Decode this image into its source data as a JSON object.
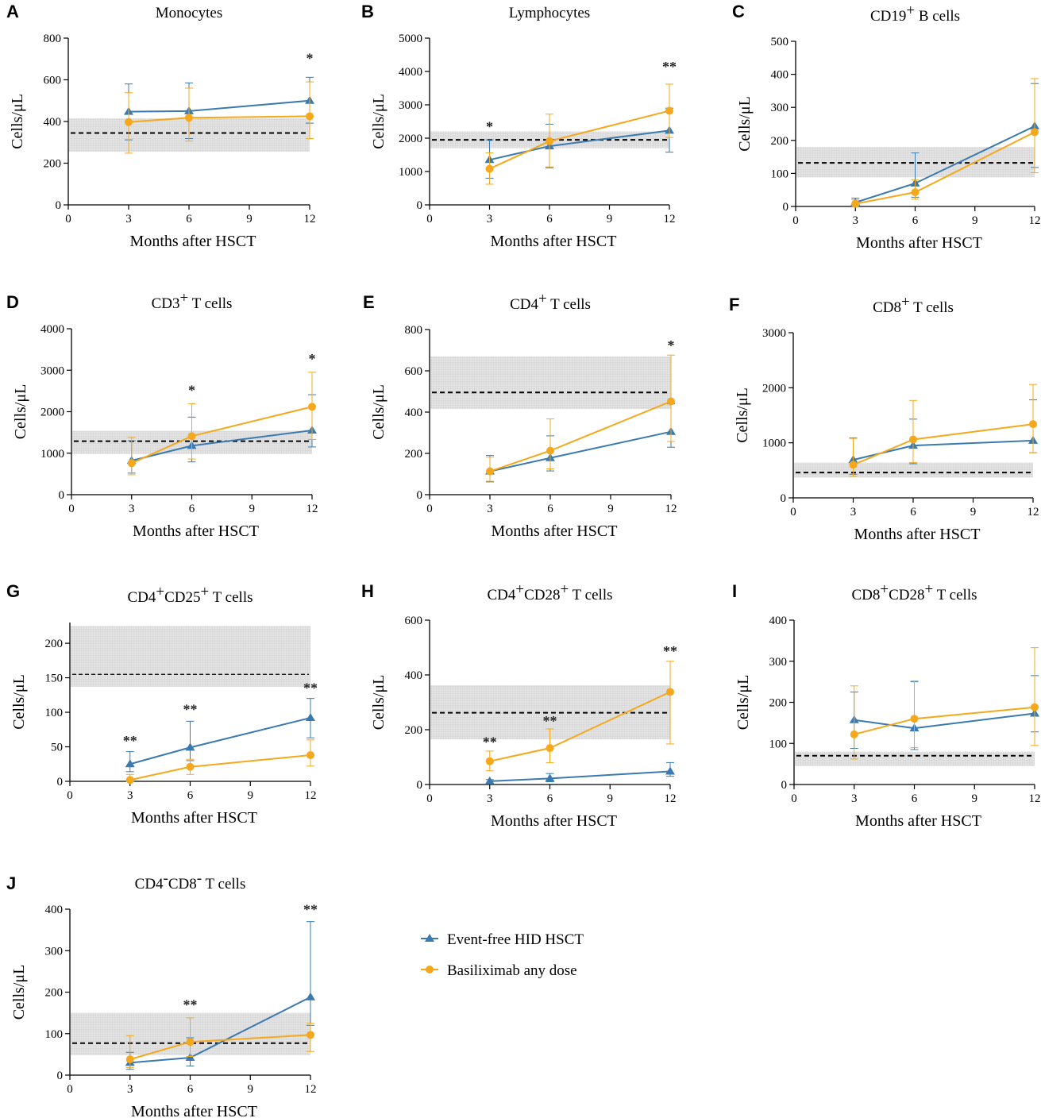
{
  "colors": {
    "series_a": "#3a7ab0",
    "series_b": "#f5a81c",
    "reference_band": "#e2e2e2",
    "reference_line": "#000000",
    "axis": "#000000"
  },
  "legend": [
    {
      "name": "Event-free HID HSCT",
      "marker": "triangle",
      "color": "#3a7ab0"
    },
    {
      "name": "Basiliximab any dose",
      "marker": "circle",
      "color": "#f5a81c"
    }
  ],
  "chart_data": [
    {
      "panel": "A",
      "type": "line",
      "title": "Monocytes",
      "title_sup": "",
      "title_suffix": "",
      "xlabel": "Months after HSCT",
      "ylabel": "Cells/μL",
      "x": [
        3,
        6,
        12
      ],
      "xlim": [
        0,
        12
      ],
      "xticks": [
        0,
        3,
        6,
        9,
        12
      ],
      "ylim": [
        0,
        800
      ],
      "yticks": [
        0,
        200,
        400,
        600,
        800
      ],
      "reference": {
        "median": 345,
        "band": [
          255,
          415
        ]
      },
      "series": [
        {
          "name": "Event-free HID HSCT",
          "values": [
            447,
            450,
            500
          ],
          "err_upper": [
            580,
            585,
            612
          ],
          "err_lower": [
            312,
            318,
            392
          ]
        },
        {
          "name": "Basiliximab any dose",
          "values": [
            397,
            418,
            425
          ],
          "err_upper": [
            538,
            560,
            590
          ],
          "err_lower": [
            248,
            306,
            318
          ]
        }
      ],
      "significance": [
        {
          "x": 12,
          "label": "*",
          "y": 680
        }
      ]
    },
    {
      "panel": "B",
      "type": "line",
      "title": "Lymphocytes",
      "title_sup": "",
      "title_suffix": "",
      "xlabel": "Months after HSCT",
      "ylabel": "Cells/μL",
      "x": [
        3,
        6,
        12
      ],
      "xlim": [
        0,
        12
      ],
      "xticks": [
        0,
        3,
        6,
        9,
        12
      ],
      "ylim": [
        0,
        5000
      ],
      "yticks": [
        0,
        1000,
        2000,
        3000,
        4000,
        5000
      ],
      "reference": {
        "median": 1950,
        "band": [
          1700,
          2200
        ]
      },
      "series": [
        {
          "name": "Event-free HID HSCT",
          "values": [
            1350,
            1760,
            2230
          ],
          "err_upper": [
            1950,
            2420,
            2900
          ],
          "err_lower": [
            800,
            1110,
            1580
          ]
        },
        {
          "name": "Basiliximab any dose",
          "values": [
            1080,
            1910,
            2820
          ],
          "err_upper": [
            1560,
            2720,
            3620
          ],
          "err_lower": [
            620,
            1140,
            2020
          ]
        }
      ],
      "significance": [
        {
          "x": 3,
          "label": "*",
          "y": 2200
        },
        {
          "x": 12,
          "label": "**",
          "y": 4000
        }
      ]
    },
    {
      "panel": "C",
      "type": "line",
      "title": "CD19",
      "title_sup": "+",
      "title_suffix": " B cells",
      "xlabel": "Months after HSCT",
      "ylabel": "Cells/μL",
      "x": [
        3,
        6,
        12
      ],
      "xlim": [
        0,
        12
      ],
      "xticks": [
        0,
        3,
        6,
        9,
        12
      ],
      "ylim": [
        0,
        500
      ],
      "yticks": [
        0,
        100,
        200,
        300,
        400,
        500
      ],
      "reference": {
        "median": 132,
        "band": [
          88,
          180
        ]
      },
      "series": [
        {
          "name": "Event-free HID HSCT",
          "values": [
            12,
            70,
            243
          ],
          "err_upper": [
            25,
            162,
            372
          ],
          "err_lower": [
            2,
            28,
            118
          ]
        },
        {
          "name": "Basiliximab any dose",
          "values": [
            8,
            43,
            225
          ],
          "err_upper": [
            20,
            80,
            387
          ],
          "err_lower": [
            1,
            22,
            102
          ]
        }
      ],
      "significance": []
    },
    {
      "panel": "D",
      "type": "line",
      "title": "CD3",
      "title_sup": "+",
      "title_suffix": " T cells",
      "xlabel": "Months after HSCT",
      "ylabel": "Cells/μL",
      "x": [
        3,
        6,
        12
      ],
      "xlim": [
        0,
        12
      ],
      "xticks": [
        0,
        3,
        6,
        9,
        12
      ],
      "ylim": [
        0,
        4000
      ],
      "yticks": [
        0,
        1000,
        2000,
        3000,
        4000
      ],
      "reference": {
        "median": 1290,
        "band": [
          980,
          1540
        ]
      },
      "series": [
        {
          "name": "Event-free HID HSCT",
          "values": [
            820,
            1180,
            1550
          ],
          "err_upper": [
            1300,
            1870,
            2410
          ],
          "err_lower": [
            520,
            790,
            1150
          ]
        },
        {
          "name": "Basiliximab any dose",
          "values": [
            760,
            1410,
            2120
          ],
          "err_upper": [
            1380,
            2190,
            2950
          ],
          "err_lower": [
            480,
            860,
            1330
          ]
        }
      ],
      "significance": [
        {
          "x": 6,
          "label": "*",
          "y": 2400
        },
        {
          "x": 12,
          "label": "*",
          "y": 3160
        }
      ]
    },
    {
      "panel": "E",
      "type": "line",
      "title": "CD4",
      "title_sup": "+",
      "title_suffix": " T cells",
      "xlabel": "Months after HSCT",
      "ylabel": "Cells/μL",
      "x": [
        3,
        6,
        12
      ],
      "xlim": [
        0,
        12
      ],
      "xticks": [
        0,
        3,
        6,
        9,
        12
      ],
      "ylim": [
        0,
        800
      ],
      "yticks": [
        0,
        200,
        400,
        600,
        800
      ],
      "reference": {
        "median": 495,
        "band": [
          415,
          670
        ]
      },
      "series": [
        {
          "name": "Event-free HID HSCT",
          "values": [
            113,
            178,
            305
          ],
          "err_upper": [
            190,
            285,
            440
          ],
          "err_lower": [
            62,
            115,
            230
          ]
        },
        {
          "name": "Basiliximab any dose",
          "values": [
            113,
            213,
            452
          ],
          "err_upper": [
            182,
            367,
            676
          ],
          "err_lower": [
            65,
            125,
            258
          ]
        }
      ],
      "significance": [
        {
          "x": 12,
          "label": "*",
          "y": 700
        }
      ]
    },
    {
      "panel": "F",
      "type": "line",
      "title": "CD8",
      "title_sup": "+",
      "title_suffix": " T cells",
      "xlabel": "Months after HSCT",
      "ylabel": "Cells/μL",
      "x": [
        3,
        6,
        12
      ],
      "xlim": [
        0,
        12
      ],
      "xticks": [
        0,
        3,
        6,
        9,
        12
      ],
      "ylim": [
        0,
        3000
      ],
      "yticks": [
        0,
        1000,
        2000,
        3000
      ],
      "reference": {
        "median": 460,
        "band": [
          370,
          640
        ]
      },
      "series": [
        {
          "name": "Event-free HID HSCT",
          "values": [
            690,
            950,
            1040
          ],
          "err_upper": [
            1090,
            1430,
            1780
          ],
          "err_lower": [
            430,
            620,
            820
          ]
        },
        {
          "name": "Basiliximab any dose",
          "values": [
            600,
            1060,
            1340
          ],
          "err_upper": [
            1080,
            1770,
            2060
          ],
          "err_lower": [
            390,
            640,
            820
          ]
        }
      ],
      "significance": []
    },
    {
      "panel": "G",
      "type": "line",
      "title": "CD4",
      "title_sup": "+",
      "title_suffix": "CD25",
      "title_sup2": "+",
      "title_suffix2": " T cells",
      "xlabel": "Months after HSCT",
      "ylabel": "Cells/μL",
      "x": [
        3,
        6,
        12
      ],
      "xlim": [
        0,
        12
      ],
      "xticks": [
        0,
        3,
        6,
        9,
        12
      ],
      "ylim": [
        0,
        230
      ],
      "yticks": [
        0,
        50,
        100,
        150,
        200
      ],
      "reference": {
        "median": 155,
        "band": [
          137,
          225
        ]
      },
      "series": [
        {
          "name": "Event-free HID HSCT",
          "values": [
            25,
            49,
            92
          ],
          "err_upper": [
            43,
            87,
            120
          ],
          "err_lower": [
            14,
            30,
            63
          ]
        },
        {
          "name": "Basiliximab any dose",
          "values": [
            2,
            21,
            38
          ],
          "err_upper": [
            10,
            32,
            60
          ],
          "err_lower": [
            0,
            10,
            22
          ]
        }
      ],
      "significance": [
        {
          "x": 3,
          "label": "**",
          "y": 52
        },
        {
          "x": 6,
          "label": "**",
          "y": 97
        },
        {
          "x": 12,
          "label": "**",
          "y": 128
        }
      ]
    },
    {
      "panel": "H",
      "type": "line",
      "title": "CD4",
      "title_sup": "+",
      "title_suffix": "CD28",
      "title_sup2": "+",
      "title_suffix2": " T cells",
      "xlabel": "Months after HSCT",
      "ylabel": "Cells/μL",
      "x": [
        3,
        6,
        12
      ],
      "xlim": [
        0,
        12
      ],
      "xticks": [
        0,
        3,
        6,
        9,
        12
      ],
      "ylim": [
        0,
        600
      ],
      "yticks": [
        0,
        200,
        400,
        600
      ],
      "reference": {
        "median": 262,
        "band": [
          165,
          362
        ]
      },
      "series": [
        {
          "name": "Event-free HID HSCT",
          "values": [
            12,
            22,
            48
          ],
          "err_upper": [
            18,
            40,
            80
          ],
          "err_lower": [
            5,
            10,
            30
          ]
        },
        {
          "name": "Basiliximab any dose",
          "values": [
            85,
            133,
            338
          ],
          "err_upper": [
            122,
            203,
            450
          ],
          "err_lower": [
            50,
            80,
            148
          ]
        }
      ],
      "significance": [
        {
          "x": 3,
          "label": "**",
          "y": 138
        },
        {
          "x": 6,
          "label": "**",
          "y": 215
        },
        {
          "x": 12,
          "label": "**",
          "y": 470
        }
      ]
    },
    {
      "panel": "I",
      "type": "line",
      "title": "CD8",
      "title_sup": "+",
      "title_suffix": "CD28",
      "title_sup2": "+",
      "title_suffix2": " T cells",
      "xlabel": "Months after HSCT",
      "ylabel": "Cells/μL",
      "x": [
        3,
        6,
        12
      ],
      "xlim": [
        0,
        12
      ],
      "xticks": [
        0,
        3,
        6,
        9,
        12
      ],
      "ylim": [
        0,
        400
      ],
      "yticks": [
        0,
        100,
        200,
        300,
        400
      ],
      "reference": {
        "median": 70,
        "band": [
          45,
          80
        ]
      },
      "series": [
        {
          "name": "Event-free HID HSCT",
          "values": [
            157,
            137,
            173
          ],
          "err_upper": [
            225,
            250,
            265
          ],
          "err_lower": [
            88,
            85,
            128
          ]
        },
        {
          "name": "Basiliximab any dose",
          "values": [
            122,
            160,
            188
          ],
          "err_upper": [
            240,
            252,
            333
          ],
          "err_lower": [
            62,
            90,
            95
          ]
        }
      ],
      "significance": []
    },
    {
      "panel": "J",
      "type": "line",
      "title": "CD4",
      "title_sup": "-",
      "title_suffix": "CD8",
      "title_sup2": "-",
      "title_suffix2": " T cells",
      "xlabel": "Months after HSCT",
      "ylabel": "Cells/μL",
      "x": [
        3,
        6,
        12
      ],
      "xlim": [
        0,
        12
      ],
      "xticks": [
        0,
        3,
        6,
        9,
        12
      ],
      "ylim": [
        0,
        400
      ],
      "yticks": [
        0,
        100,
        200,
        300,
        400
      ],
      "reference": {
        "median": 77,
        "band": [
          48,
          150
        ]
      },
      "series": [
        {
          "name": "Event-free HID HSCT",
          "values": [
            30,
            42,
            188
          ],
          "err_upper": [
            55,
            90,
            370
          ],
          "err_lower": [
            14,
            22,
            120
          ]
        },
        {
          "name": "Basiliximab any dose",
          "values": [
            38,
            80,
            97
          ],
          "err_upper": [
            95,
            138,
            125
          ],
          "err_lower": [
            18,
            45,
            57
          ]
        }
      ],
      "significance": [
        {
          "x": 6,
          "label": "**",
          "y": 158
        },
        {
          "x": 12,
          "label": "**",
          "y": 388
        }
      ]
    }
  ]
}
